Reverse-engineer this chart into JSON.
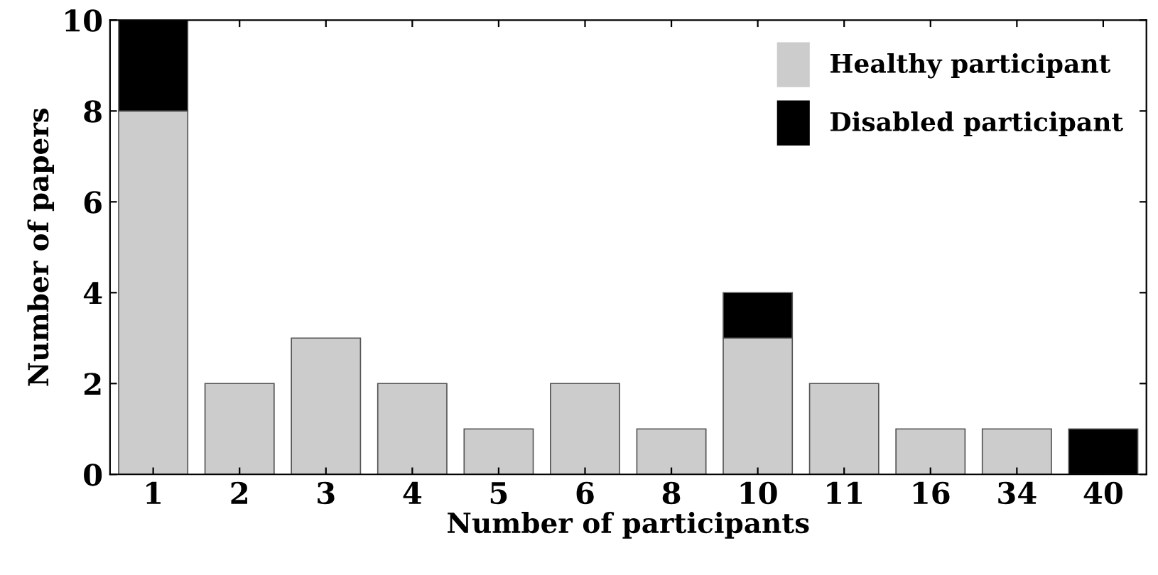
{
  "chart_data": {
    "type": "bar",
    "stacked": true,
    "xlabel": "Number of participants",
    "ylabel": "Number of papers",
    "categories": [
      "1",
      "2",
      "3",
      "4",
      "5",
      "6",
      "8",
      "10",
      "11",
      "16",
      "34",
      "40"
    ],
    "series": [
      {
        "name": "Healthy participant",
        "color": "#cccccc",
        "values": [
          8,
          2,
          3,
          2,
          1,
          2,
          1,
          3,
          2,
          1,
          1,
          null
        ]
      },
      {
        "name": "Disabled participant",
        "color": "#000000",
        "values": [
          2,
          null,
          null,
          null,
          null,
          null,
          null,
          1,
          null,
          null,
          null,
          1
        ]
      }
    ],
    "ylim": [
      0,
      10
    ],
    "yticks": [
      0,
      2,
      4,
      6,
      8,
      10
    ],
    "grid": false,
    "legend": "top right"
  }
}
